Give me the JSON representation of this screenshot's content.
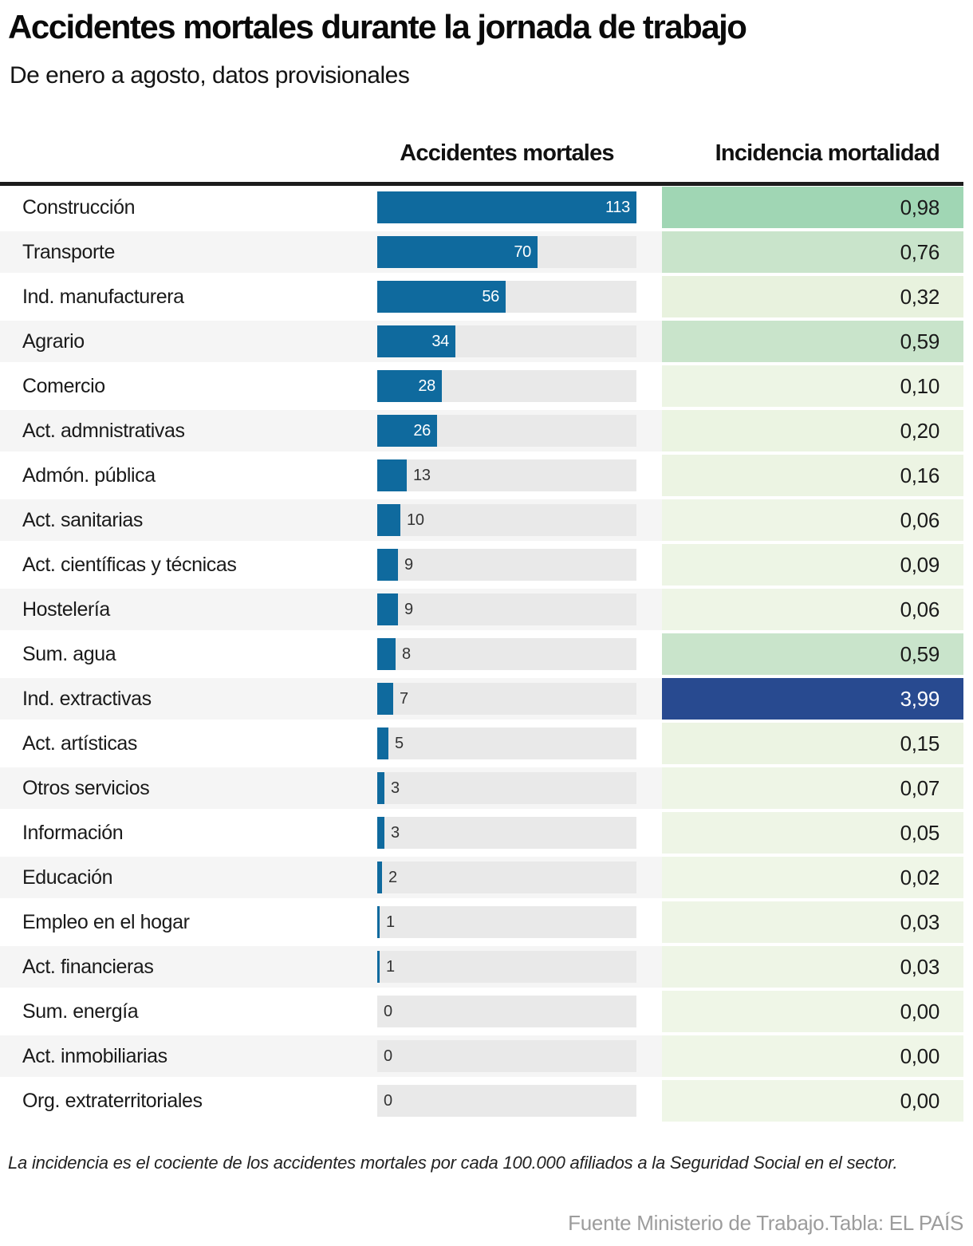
{
  "header": {
    "title": "Accidentes mortales durante la jornada de trabajo",
    "subtitle": "De enero a agosto, datos provisionales"
  },
  "columns": {
    "accidents": "Accidentes mortales",
    "incidence": "Incidencia mortalidad"
  },
  "rows": [
    {
      "label": "Construcción",
      "accidents": 113,
      "incidence": "0,98",
      "cell_bg": "#a0d6b4",
      "cell_text": "#1a1a1a"
    },
    {
      "label": "Transporte",
      "accidents": 70,
      "incidence": "0,76",
      "cell_bg": "#c9e4cb",
      "cell_text": "#1a1a1a"
    },
    {
      "label": "Ind. manufacturera",
      "accidents": 56,
      "incidence": "0,32",
      "cell_bg": "#e8f2de",
      "cell_text": "#1a1a1a"
    },
    {
      "label": "Agrario",
      "accidents": 34,
      "incidence": "0,59",
      "cell_bg": "#c9e4cb",
      "cell_text": "#1a1a1a"
    },
    {
      "label": "Comercio",
      "accidents": 28,
      "incidence": "0,10",
      "cell_bg": "#edf5e5",
      "cell_text": "#1a1a1a"
    },
    {
      "label": "Act. admnistrativas",
      "accidents": 26,
      "incidence": "0,20",
      "cell_bg": "#ebf4e2",
      "cell_text": "#1a1a1a"
    },
    {
      "label": "Admón. pública",
      "accidents": 13,
      "incidence": "0,16",
      "cell_bg": "#ecf4e3",
      "cell_text": "#1a1a1a"
    },
    {
      "label": "Act. sanitarias",
      "accidents": 10,
      "incidence": "0,06",
      "cell_bg": "#eef5e6",
      "cell_text": "#1a1a1a"
    },
    {
      "label": "Act. científicas y técnicas",
      "accidents": 9,
      "incidence": "0,09",
      "cell_bg": "#edf5e5",
      "cell_text": "#1a1a1a"
    },
    {
      "label": "Hostelería",
      "accidents": 9,
      "incidence": "0,06",
      "cell_bg": "#eef5e6",
      "cell_text": "#1a1a1a"
    },
    {
      "label": "Sum. agua",
      "accidents": 8,
      "incidence": "0,59",
      "cell_bg": "#c9e4cb",
      "cell_text": "#1a1a1a"
    },
    {
      "label": "Ind. extractivas",
      "accidents": 7,
      "incidence": "3,99",
      "cell_bg": "#284a90",
      "cell_text": "#ffffff"
    },
    {
      "label": "Act. artísticas",
      "accidents": 5,
      "incidence": "0,15",
      "cell_bg": "#ecf4e3",
      "cell_text": "#1a1a1a"
    },
    {
      "label": "Otros servicios",
      "accidents": 3,
      "incidence": "0,07",
      "cell_bg": "#eef5e6",
      "cell_text": "#1a1a1a"
    },
    {
      "label": "Información",
      "accidents": 3,
      "incidence": "0,05",
      "cell_bg": "#eef5e6",
      "cell_text": "#1a1a1a"
    },
    {
      "label": "Educación",
      "accidents": 2,
      "incidence": "0,02",
      "cell_bg": "#eff6e7",
      "cell_text": "#1a1a1a"
    },
    {
      "label": "Empleo en el hogar",
      "accidents": 1,
      "incidence": "0,03",
      "cell_bg": "#eef5e6",
      "cell_text": "#1a1a1a"
    },
    {
      "label": "Act. financieras",
      "accidents": 1,
      "incidence": "0,03",
      "cell_bg": "#eef5e6",
      "cell_text": "#1a1a1a"
    },
    {
      "label": "Sum. energía",
      "accidents": 0,
      "incidence": "0,00",
      "cell_bg": "#eff6e7",
      "cell_text": "#1a1a1a"
    },
    {
      "label": "Act. inmobiliarias",
      "accidents": 0,
      "incidence": "0,00",
      "cell_bg": "#eff6e7",
      "cell_text": "#1a1a1a"
    },
    {
      "label": "Org. extraterritoriales",
      "accidents": 0,
      "incidence": "0,00",
      "cell_bg": "#eff6e7",
      "cell_text": "#1a1a1a"
    }
  ],
  "footnote": "La incidencia es el cociente de los accidentes mortales por cada 100.000 afiliados a la Seguridad Social en el sector.",
  "source": "Fuente Ministerio de Trabajo.Tabla: EL PAÍS",
  "colors": {
    "bar_blue": "#0f6a9e",
    "bar_track": "#e9e9e9",
    "rule_dark": "#1c1c1c",
    "row_alt_bg": "#f5f5f5",
    "highlight_navy": "#284a90",
    "green_high": "#a0d6b4",
    "green_mid": "#c9e4cb",
    "green_low": "#eef5e6",
    "source_gray": "#9c9c9c"
  },
  "chart_data": {
    "type": "bar",
    "title": "Accidentes mortales durante la jornada de trabajo",
    "subtitle": "De enero a agosto, datos provisionales",
    "categories": [
      "Construcción",
      "Transporte",
      "Ind. manufacturera",
      "Agrario",
      "Comercio",
      "Act. admnistrativas",
      "Admón. pública",
      "Act. sanitarias",
      "Act. científicas y técnicas",
      "Hostelería",
      "Sum. agua",
      "Ind. extractivas",
      "Act. artísticas",
      "Otros servicios",
      "Información",
      "Educación",
      "Empleo en el hogar",
      "Act. financieras",
      "Sum. energía",
      "Act. inmobiliarias",
      "Org. extraterritoriales"
    ],
    "series": [
      {
        "name": "Accidentes mortales",
        "values": [
          113,
          70,
          56,
          34,
          28,
          26,
          13,
          10,
          9,
          9,
          8,
          7,
          5,
          3,
          3,
          2,
          1,
          1,
          0,
          0,
          0
        ]
      },
      {
        "name": "Incidencia mortalidad",
        "values": [
          0.98,
          0.76,
          0.32,
          0.59,
          0.1,
          0.2,
          0.16,
          0.06,
          0.09,
          0.06,
          0.59,
          3.99,
          0.15,
          0.07,
          0.05,
          0.02,
          0.03,
          0.03,
          0.0,
          0.0,
          0.0
        ]
      }
    ],
    "xlabel": "",
    "ylabel": "",
    "xlim": [
      0,
      113
    ],
    "grid": false,
    "legend_position": "none",
    "orientation": "horizontal"
  }
}
